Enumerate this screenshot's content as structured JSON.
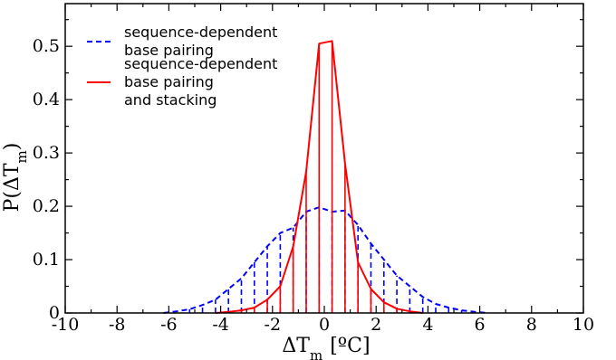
{
  "chart_data": {
    "type": "line",
    "xlabel": {
      "prefix": "ΔT",
      "sub": "m",
      "unit": "[ºC]"
    },
    "ylabel": {
      "prefix": "P(ΔT",
      "sub": "m",
      "suffix": ")"
    },
    "xlim": [
      -10,
      10
    ],
    "ylim": [
      0,
      0.58
    ],
    "xticks": [
      -10,
      -8,
      -6,
      -4,
      -2,
      0,
      2,
      4,
      6,
      8,
      10
    ],
    "yticks": [
      0,
      0.1,
      0.2,
      0.3,
      0.4,
      0.5
    ],
    "legend_position": "upper-left",
    "series": [
      {
        "name": "sequence-dependent\nbase pairing",
        "style": "dashed",
        "color": "#0000ff",
        "x": [
          -6.2,
          -5.7,
          -5.2,
          -4.7,
          -4.2,
          -3.7,
          -3.2,
          -2.7,
          -2.2,
          -1.7,
          -1.2,
          -0.7,
          -0.2,
          0.3,
          0.8,
          1.3,
          1.8,
          2.3,
          2.8,
          3.3,
          3.8,
          4.3,
          4.8,
          5.3,
          5.8,
          6.3
        ],
        "y": [
          0.0,
          0.003,
          0.007,
          0.015,
          0.025,
          0.045,
          0.065,
          0.095,
          0.125,
          0.15,
          0.16,
          0.19,
          0.198,
          0.19,
          0.192,
          0.165,
          0.13,
          0.1,
          0.07,
          0.05,
          0.03,
          0.017,
          0.01,
          0.005,
          0.002,
          0.0
        ]
      },
      {
        "name": "sequence-dependent\nbase pairing\nand stacking",
        "style": "solid",
        "color": "#ff0000",
        "x": [
          -4.2,
          -3.7,
          -3.2,
          -2.7,
          -2.2,
          -1.7,
          -1.2,
          -0.7,
          -0.2,
          0.3,
          0.8,
          1.3,
          1.8,
          2.3,
          2.8,
          3.3,
          3.8
        ],
        "y": [
          0.0,
          0.002,
          0.005,
          0.01,
          0.025,
          0.05,
          0.125,
          0.265,
          0.505,
          0.51,
          0.28,
          0.095,
          0.045,
          0.02,
          0.008,
          0.003,
          0.0
        ]
      }
    ]
  },
  "colors": {
    "axis": "#000000",
    "series_blue": "#0000ff",
    "series_red": "#ff0000"
  }
}
